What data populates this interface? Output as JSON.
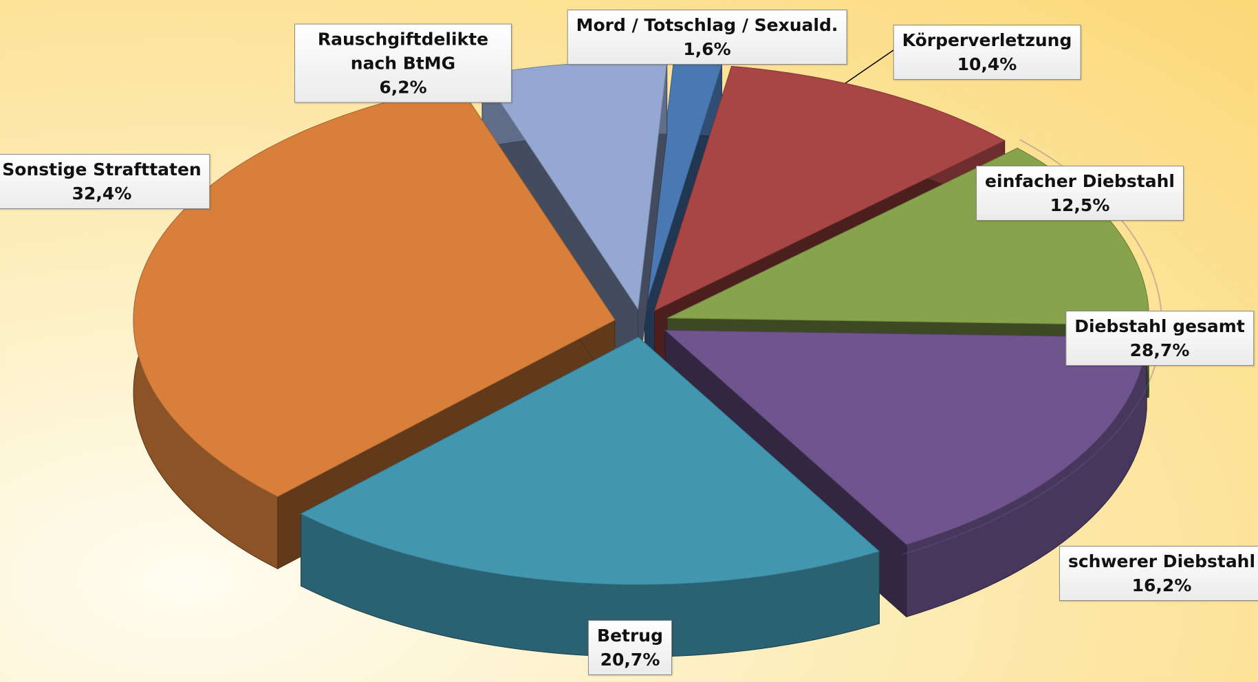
{
  "chart_data": {
    "type": "pie",
    "categories": [
      "Mord / Totschlag / Sexuald.",
      "Körperverletzung",
      "einfacher Diebstahl",
      "schwerer Diebstahl",
      "Betrug",
      "Sonstige Strafttaten",
      "Rauschgiftdelikte nach BtMG"
    ],
    "values": [
      1.6,
      10.4,
      12.5,
      16.2,
      20.7,
      32.4,
      6.2
    ],
    "value_labels": [
      "1,6%",
      "10,4%",
      "12,5%",
      "16,2%",
      "20,7%",
      "32,4%",
      "6,2%"
    ],
    "colors": [
      "#4a78b2",
      "#a84545",
      "#87a34b",
      "#6f548e",
      "#4296af",
      "#d8803b",
      "#94a8d1"
    ],
    "annotation": {
      "text": "Diebstahl gesamt",
      "value": 28.7,
      "label": "28,7%"
    }
  }
}
